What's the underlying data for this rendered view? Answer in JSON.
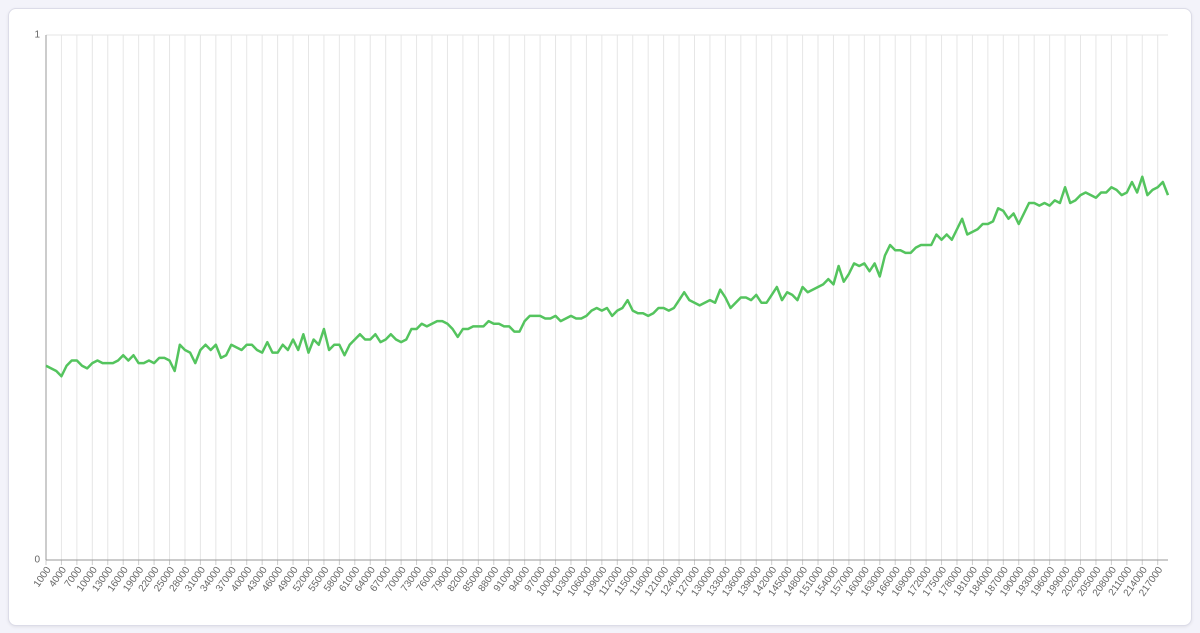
{
  "chart_data": {
    "type": "line",
    "color": "#54c45e",
    "grid": true,
    "ylim": [
      0,
      1
    ],
    "yticks": [
      0,
      1
    ],
    "xlim": [
      1000,
      219000
    ],
    "xticks": [
      1000,
      4000,
      7000,
      10000,
      13000,
      16000,
      19000,
      22000,
      25000,
      28000,
      31000,
      34000,
      37000,
      40000,
      43000,
      46000,
      49000,
      52000,
      55000,
      58000,
      61000,
      64000,
      67000,
      70000,
      73000,
      76000,
      79000,
      82000,
      85000,
      88000,
      91000,
      94000,
      97000,
      100000,
      103000,
      106000,
      109000,
      112000,
      115000,
      118000,
      121000,
      124000,
      127000,
      130000,
      133000,
      136000,
      139000,
      142000,
      145000,
      148000,
      151000,
      154000,
      157000,
      160000,
      163000,
      166000,
      169000,
      172000,
      175000,
      178000,
      181000,
      184000,
      187000,
      190000,
      193000,
      196000,
      199000,
      202000,
      205000,
      208000,
      211000,
      214000,
      217000
    ],
    "x": [
      1000,
      2000,
      3000,
      4000,
      5000,
      6000,
      7000,
      8000,
      9000,
      10000,
      11000,
      12000,
      13000,
      14000,
      15000,
      16000,
      17000,
      18000,
      19000,
      20000,
      21000,
      22000,
      23000,
      24000,
      25000,
      26000,
      27000,
      28000,
      29000,
      30000,
      31000,
      32000,
      33000,
      34000,
      35000,
      36000,
      37000,
      38000,
      39000,
      40000,
      41000,
      42000,
      43000,
      44000,
      45000,
      46000,
      47000,
      48000,
      49000,
      50000,
      51000,
      52000,
      53000,
      54000,
      55000,
      56000,
      57000,
      58000,
      59000,
      60000,
      61000,
      62000,
      63000,
      64000,
      65000,
      66000,
      67000,
      68000,
      69000,
      70000,
      71000,
      72000,
      73000,
      74000,
      75000,
      76000,
      77000,
      78000,
      79000,
      80000,
      81000,
      82000,
      83000,
      84000,
      85000,
      86000,
      87000,
      88000,
      89000,
      90000,
      91000,
      92000,
      93000,
      94000,
      95000,
      96000,
      97000,
      98000,
      99000,
      100000,
      101000,
      102000,
      103000,
      104000,
      105000,
      106000,
      107000,
      108000,
      109000,
      110000,
      111000,
      112000,
      113000,
      114000,
      115000,
      116000,
      117000,
      118000,
      119000,
      120000,
      121000,
      122000,
      123000,
      124000,
      125000,
      126000,
      127000,
      128000,
      129000,
      130000,
      131000,
      132000,
      133000,
      134000,
      135000,
      136000,
      137000,
      138000,
      139000,
      140000,
      141000,
      142000,
      143000,
      144000,
      145000,
      146000,
      147000,
      148000,
      149000,
      150000,
      151000,
      152000,
      153000,
      154000,
      155000,
      156000,
      157000,
      158000,
      159000,
      160000,
      161000,
      162000,
      163000,
      164000,
      165000,
      166000,
      167000,
      168000,
      169000,
      170000,
      171000,
      172000,
      173000,
      174000,
      175000,
      176000,
      177000,
      178000,
      179000,
      180000,
      181000,
      182000,
      183000,
      184000,
      185000,
      186000,
      187000,
      188000,
      189000,
      190000,
      191000,
      192000,
      193000,
      194000,
      195000,
      196000,
      197000,
      198000,
      199000,
      200000,
      201000,
      202000,
      203000,
      204000,
      205000,
      206000,
      207000,
      208000,
      209000,
      210000,
      211000,
      212000,
      213000,
      214000,
      215000,
      216000,
      217000,
      218000,
      219000
    ],
    "values": [
      0.37,
      0.365,
      0.36,
      0.35,
      0.37,
      0.38,
      0.38,
      0.37,
      0.365,
      0.375,
      0.38,
      0.375,
      0.375,
      0.375,
      0.38,
      0.39,
      0.38,
      0.39,
      0.375,
      0.375,
      0.38,
      0.375,
      0.385,
      0.385,
      0.38,
      0.36,
      0.41,
      0.4,
      0.395,
      0.375,
      0.4,
      0.41,
      0.4,
      0.41,
      0.385,
      0.39,
      0.41,
      0.405,
      0.4,
      0.41,
      0.41,
      0.4,
      0.395,
      0.415,
      0.395,
      0.395,
      0.41,
      0.4,
      0.42,
      0.4,
      0.43,
      0.395,
      0.42,
      0.41,
      0.44,
      0.4,
      0.41,
      0.41,
      0.39,
      0.41,
      0.42,
      0.43,
      0.42,
      0.42,
      0.43,
      0.415,
      0.42,
      0.43,
      0.42,
      0.415,
      0.42,
      0.44,
      0.44,
      0.45,
      0.445,
      0.45,
      0.455,
      0.455,
      0.45,
      0.44,
      0.425,
      0.44,
      0.44,
      0.445,
      0.445,
      0.445,
      0.455,
      0.45,
      0.45,
      0.445,
      0.445,
      0.435,
      0.435,
      0.455,
      0.465,
      0.465,
      0.465,
      0.46,
      0.46,
      0.465,
      0.455,
      0.46,
      0.465,
      0.46,
      0.46,
      0.465,
      0.475,
      0.48,
      0.475,
      0.48,
      0.465,
      0.475,
      0.48,
      0.495,
      0.475,
      0.47,
      0.47,
      0.465,
      0.47,
      0.48,
      0.48,
      0.475,
      0.48,
      0.495,
      0.51,
      0.495,
      0.49,
      0.485,
      0.49,
      0.495,
      0.49,
      0.515,
      0.5,
      0.48,
      0.49,
      0.5,
      0.5,
      0.495,
      0.505,
      0.49,
      0.49,
      0.505,
      0.52,
      0.495,
      0.51,
      0.505,
      0.495,
      0.52,
      0.51,
      0.515,
      0.52,
      0.525,
      0.535,
      0.525,
      0.56,
      0.53,
      0.545,
      0.565,
      0.56,
      0.565,
      0.55,
      0.565,
      0.54,
      0.58,
      0.6,
      0.59,
      0.59,
      0.585,
      0.585,
      0.595,
      0.6,
      0.6,
      0.6,
      0.62,
      0.61,
      0.62,
      0.61,
      0.63,
      0.65,
      0.62,
      0.625,
      0.63,
      0.64,
      0.64,
      0.645,
      0.67,
      0.665,
      0.65,
      0.66,
      0.64,
      0.66,
      0.68,
      0.68,
      0.675,
      0.68,
      0.675,
      0.685,
      0.68,
      0.71,
      0.68,
      0.685,
      0.695,
      0.7,
      0.695,
      0.69,
      0.7,
      0.7,
      0.71,
      0.705,
      0.695,
      0.7,
      0.72,
      0.7,
      0.73,
      0.695,
      0.705,
      0.71,
      0.72,
      0.695
    ]
  }
}
